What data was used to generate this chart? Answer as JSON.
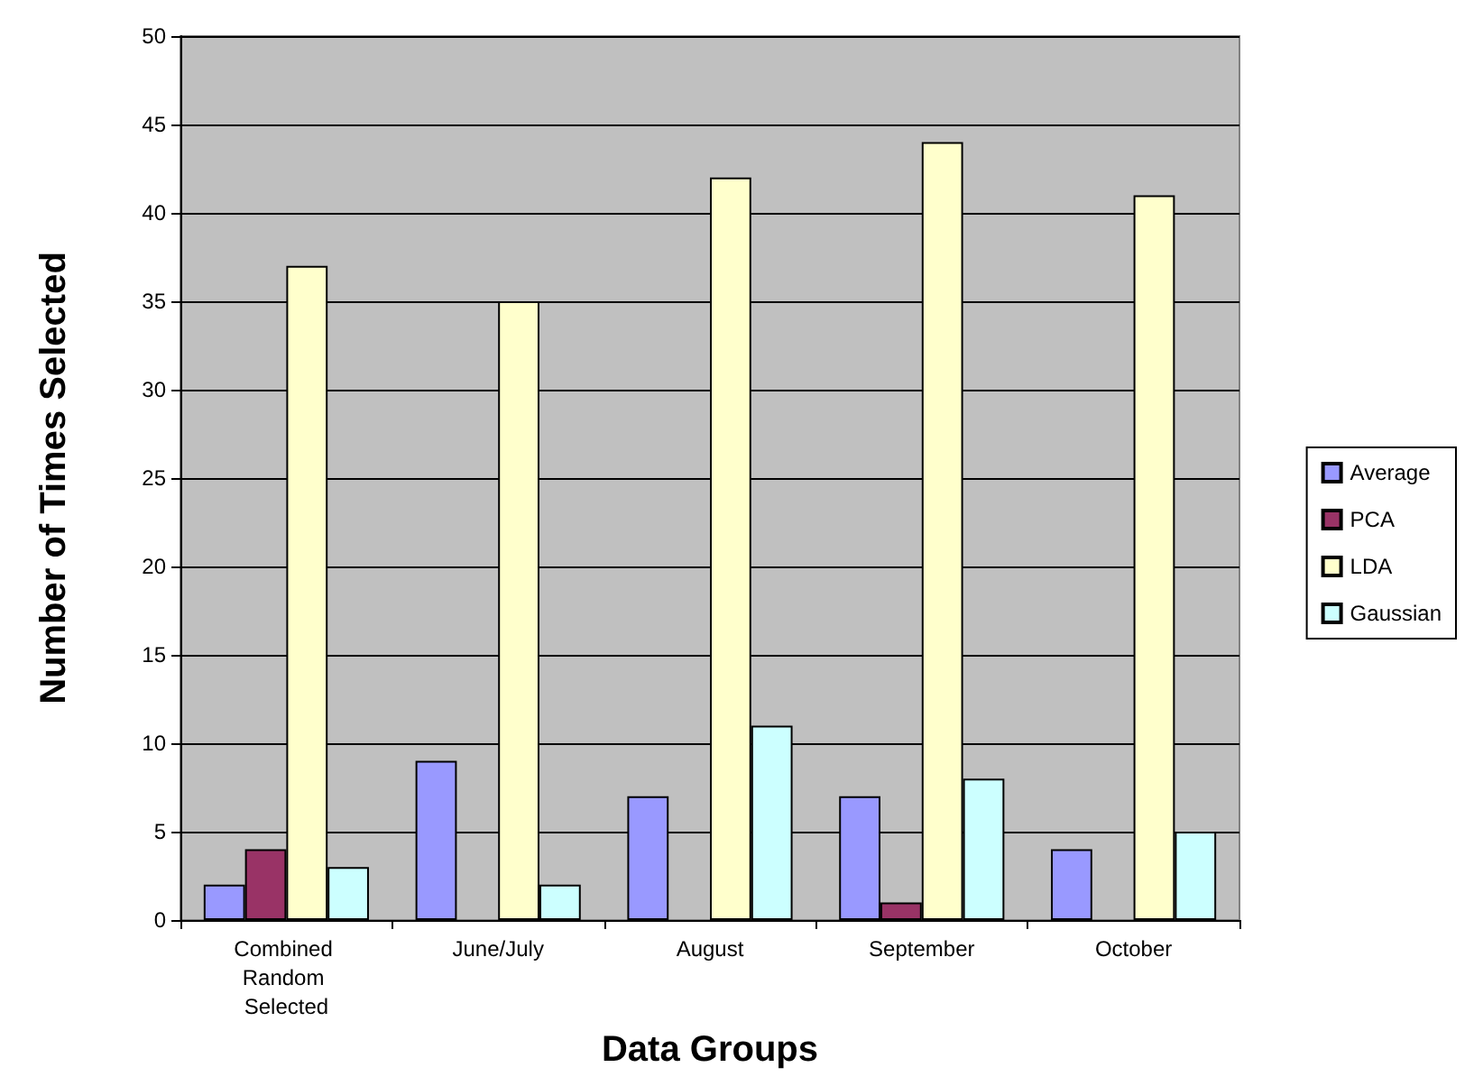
{
  "chart_data": {
    "type": "bar",
    "xlabel": "Data Groups",
    "ylabel": "Number of Times Selected",
    "categories": [
      "Combined Random Selected",
      "June/July",
      "August",
      "September",
      "October"
    ],
    "series": [
      {
        "name": "Average",
        "color": "#9999ff",
        "values": [
          2,
          9,
          7,
          7,
          4
        ]
      },
      {
        "name": "PCA",
        "color": "#993366",
        "values": [
          4,
          0,
          0,
          1,
          0
        ]
      },
      {
        "name": "LDA",
        "color": "#ffffcc",
        "values": [
          37,
          35,
          42,
          44,
          41
        ]
      },
      {
        "name": "Gaussian",
        "color": "#ccffff",
        "values": [
          3,
          2,
          11,
          8,
          5
        ]
      }
    ],
    "ylim": [
      0,
      50
    ],
    "yticks": [
      0,
      5,
      10,
      15,
      20,
      25,
      30,
      35,
      40,
      45,
      50
    ],
    "grid": "y",
    "legend": "right"
  }
}
